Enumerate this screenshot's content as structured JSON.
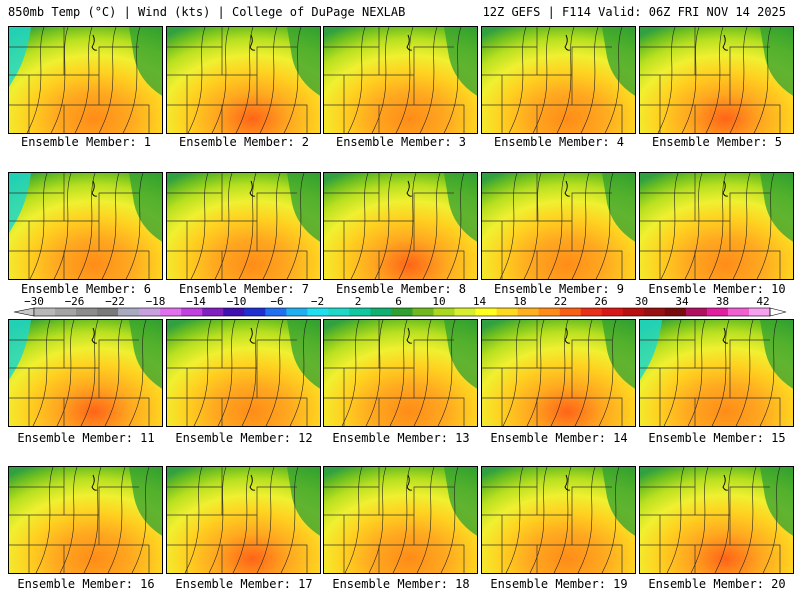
{
  "header": {
    "left": "850mb Temp (°C) | Wind (kts) | College of DuPage NEXLAB",
    "right": "12Z GEFS | F114 Valid: 06Z FRI NOV 14 2025"
  },
  "members": [
    "Ensemble Member: 1",
    "Ensemble Member: 2",
    "Ensemble Member: 3",
    "Ensemble Member: 4",
    "Ensemble Member: 5",
    "Ensemble Member: 6",
    "Ensemble Member: 7",
    "Ensemble Member: 8",
    "Ensemble Member: 9",
    "Ensemble Member: 10",
    "Ensemble Member: 11",
    "Ensemble Member: 12",
    "Ensemble Member: 13",
    "Ensemble Member: 14",
    "Ensemble Member: 15",
    "Ensemble Member: 16",
    "Ensemble Member: 17",
    "Ensemble Member: 18",
    "Ensemble Member: 19",
    "Ensemble Member: 20"
  ],
  "colorbar": {
    "tick_labels": [
      "−30",
      "−26",
      "−22",
      "−18",
      "−14",
      "−10",
      "−6",
      "−2",
      "2",
      "6",
      "10",
      "14",
      "18",
      "22",
      "26",
      "30",
      "34",
      "38",
      "42"
    ],
    "colors": [
      "#b8b8b8",
      "#a4a4a4",
      "#8c8c8c",
      "#7a7a7a",
      "#a9a9c0",
      "#c8a0e0",
      "#e070f0",
      "#c040e0",
      "#8020c0",
      "#4010b0",
      "#2030d0",
      "#2070f0",
      "#20b0f0",
      "#20e0f0",
      "#20d8c8",
      "#10c8a0",
      "#10b070",
      "#30a030",
      "#70b820",
      "#a8d820",
      "#d8ef30",
      "#ffff20",
      "#ffd820",
      "#ffb020",
      "#ff8c18",
      "#f86018",
      "#e83018",
      "#d81818",
      "#b81010",
      "#981010",
      "#780c0c",
      "#b01060",
      "#e020a0",
      "#f060d0",
      "#f8a0f0"
    ]
  }
}
